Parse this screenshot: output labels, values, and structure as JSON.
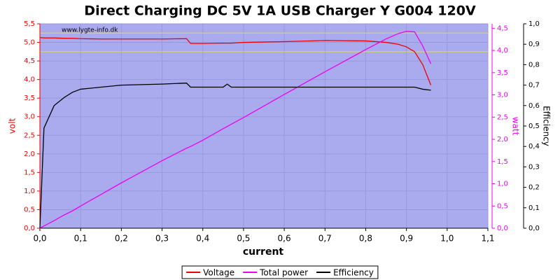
{
  "chart_data": {
    "type": "line",
    "title": "Direct Charging DC 5V 1A USB Charger Y G004 120V",
    "watermark": "www.lygte-info.dk",
    "x_label": "current",
    "y_label": "volt",
    "y2_label": "watt",
    "y3_label": "Efficiency",
    "x": [
      0,
      0.01,
      0.035,
      0.06,
      0.08,
      0.1,
      0.15,
      0.2,
      0.3,
      0.36,
      0.37,
      0.4,
      0.45,
      0.46,
      0.47,
      0.5,
      0.6,
      0.7,
      0.8,
      0.85,
      0.88,
      0.9,
      0.92,
      0.94,
      0.96
    ],
    "series": [
      {
        "name": "Voltage",
        "color": "#ee0000",
        "axis": "y",
        "values": [
          5.13,
          5.12,
          5.12,
          5.11,
          5.11,
          5.1,
          5.09,
          5.09,
          5.09,
          5.1,
          4.97,
          4.97,
          4.98,
          4.98,
          4.98,
          5.0,
          5.02,
          5.05,
          5.04,
          5.0,
          4.95,
          4.88,
          4.75,
          4.4,
          3.85
        ]
      },
      {
        "name": "Total power",
        "color": "#ee00ee",
        "axis": "y2",
        "values": [
          0,
          0.05,
          0.17,
          0.3,
          0.39,
          0.5,
          0.76,
          1.02,
          1.52,
          1.8,
          1.84,
          1.98,
          2.24,
          2.29,
          2.34,
          2.49,
          3.01,
          3.52,
          4.02,
          4.26,
          4.38,
          4.43,
          4.42,
          4.1,
          3.7
        ]
      },
      {
        "name": "Efficiency",
        "color": "#000000",
        "axis": "y3",
        "values": [
          0,
          0.49,
          0.6,
          0.64,
          0.665,
          0.68,
          0.69,
          0.7,
          0.705,
          0.71,
          0.69,
          0.69,
          0.69,
          0.705,
          0.69,
          0.69,
          0.69,
          0.69,
          0.69,
          0.69,
          0.69,
          0.69,
          0.69,
          0.68,
          0.675
        ]
      }
    ],
    "reference_lines": [
      5.25,
      4.75
    ],
    "reference_color": "#e8e800",
    "xlim": [
      0,
      1.1
    ],
    "xticks": [
      {
        "value": 0,
        "label": "0,0"
      },
      {
        "value": 0.1,
        "label": "0,1"
      },
      {
        "value": 0.2,
        "label": "0,2"
      },
      {
        "value": 0.3,
        "label": "0,3"
      },
      {
        "value": 0.4,
        "label": "0,4"
      },
      {
        "value": 0.5,
        "label": "0,5"
      },
      {
        "value": 0.6,
        "label": "0,6"
      },
      {
        "value": 0.7,
        "label": "0,7"
      },
      {
        "value": 0.8,
        "label": "0,8"
      },
      {
        "value": 0.9,
        "label": "0,9"
      },
      {
        "value": 1.0,
        "label": "1,0"
      },
      {
        "value": 1.1,
        "label": "1,1"
      }
    ],
    "ylim": [
      0,
      5.5
    ],
    "yticks": [
      {
        "value": 0,
        "label": "0,0"
      },
      {
        "value": 0.5,
        "label": "0,5"
      },
      {
        "value": 1.0,
        "label": "1,0"
      },
      {
        "value": 1.5,
        "label": "1,5"
      },
      {
        "value": 2.0,
        "label": "2,0"
      },
      {
        "value": 2.5,
        "label": "2,5"
      },
      {
        "value": 3.0,
        "label": "3,0"
      },
      {
        "value": 3.5,
        "label": "3,5"
      },
      {
        "value": 4.0,
        "label": "4,0"
      },
      {
        "value": 4.5,
        "label": "4,5"
      },
      {
        "value": 5.0,
        "label": "5,0"
      },
      {
        "value": 5.5,
        "label": "5,5"
      }
    ],
    "y2lim": [
      0,
      4.6
    ],
    "y2ticks": [
      {
        "value": 0,
        "label": "0,0"
      },
      {
        "value": 0.5,
        "label": "0,5"
      },
      {
        "value": 1.0,
        "label": "1,0"
      },
      {
        "value": 1.5,
        "label": "1,5"
      },
      {
        "value": 2.0,
        "label": "2,0"
      },
      {
        "value": 2.5,
        "label": "2,5"
      },
      {
        "value": 3.0,
        "label": "3,0"
      },
      {
        "value": 3.5,
        "label": "3,5"
      },
      {
        "value": 4.0,
        "label": "4,0"
      },
      {
        "value": 4.5,
        "label": "4,5"
      }
    ],
    "y3lim": [
      0,
      1
    ],
    "y3ticks": [
      {
        "value": 0,
        "label": "0,0"
      },
      {
        "value": 0.1,
        "label": "0,1"
      },
      {
        "value": 0.2,
        "label": "0,2"
      },
      {
        "value": 0.3,
        "label": "0,3"
      },
      {
        "value": 0.4,
        "label": "0,4"
      },
      {
        "value": 0.5,
        "label": "0,5"
      },
      {
        "value": 0.6,
        "label": "0,6"
      },
      {
        "value": 0.7,
        "label": "0,7"
      },
      {
        "value": 0.8,
        "label": "0,8"
      },
      {
        "value": 0.9,
        "label": "0,9"
      },
      {
        "value": 1.0,
        "label": "1,0"
      }
    ],
    "grid": true,
    "plot_background": "#aaaaee",
    "legend": "bottom"
  }
}
